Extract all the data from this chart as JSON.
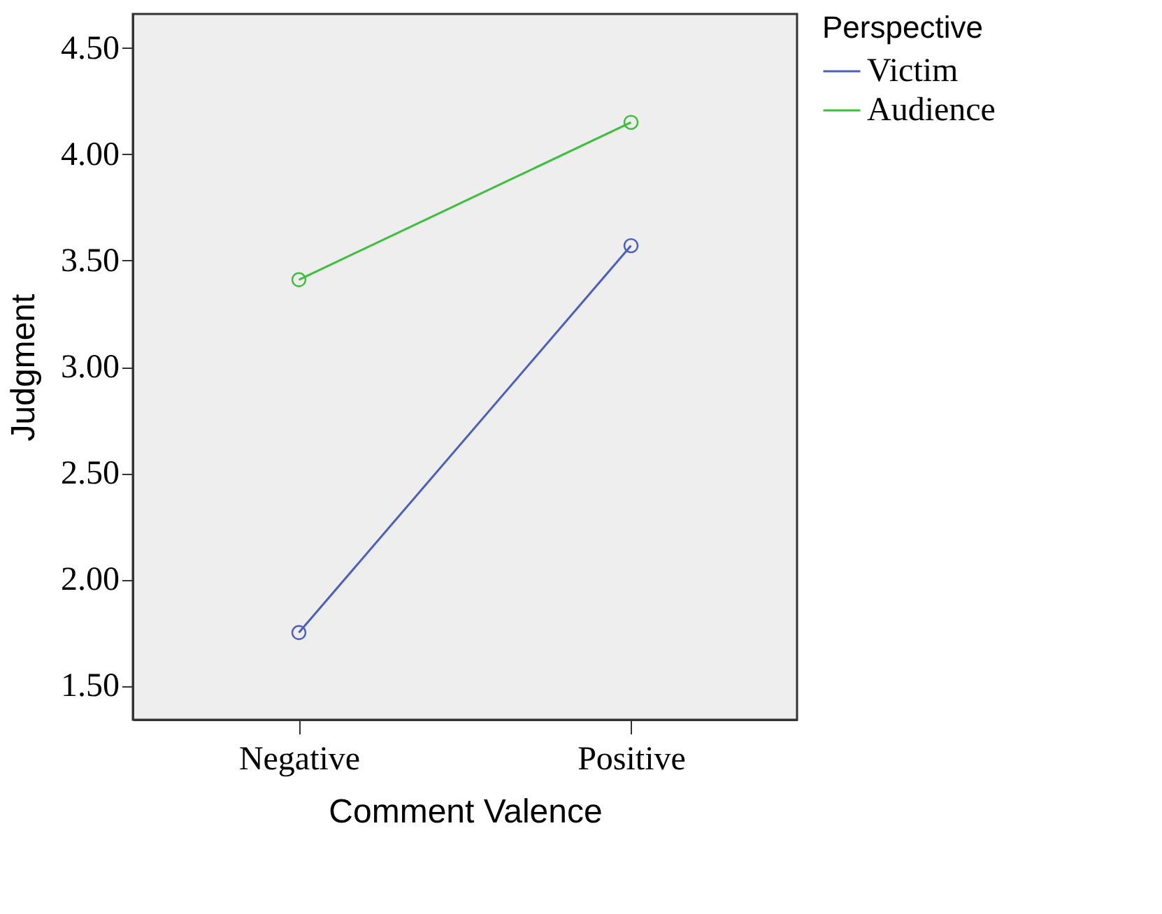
{
  "chart_data": {
    "type": "line",
    "xlabel": "Comment Valence",
    "ylabel": "Judgment",
    "legend_title": "Perspective",
    "categories": [
      "Negative",
      "Positive"
    ],
    "series": [
      {
        "name": "Victim",
        "color": "#4a5fbf",
        "values": [
          1.75,
          3.57
        ]
      },
      {
        "name": "Audience",
        "color": "#3cbf3c",
        "values": [
          3.41,
          4.15
        ]
      }
    ],
    "ylim": [
      1.34,
      4.66
    ],
    "yticks": [
      {
        "value": 1.5,
        "label": "1.50"
      },
      {
        "value": 2,
        "label": "2.00"
      },
      {
        "value": 2.5,
        "label": "2.50"
      },
      {
        "value": 3,
        "label": "3.00"
      },
      {
        "value": 3.5,
        "label": "3.50"
      },
      {
        "value": 4,
        "label": "4.00"
      },
      {
        "value": 4.5,
        "label": "4.50"
      }
    ],
    "grid": false,
    "legend": "top right",
    "marker": "circle",
    "line_style": "solid"
  }
}
